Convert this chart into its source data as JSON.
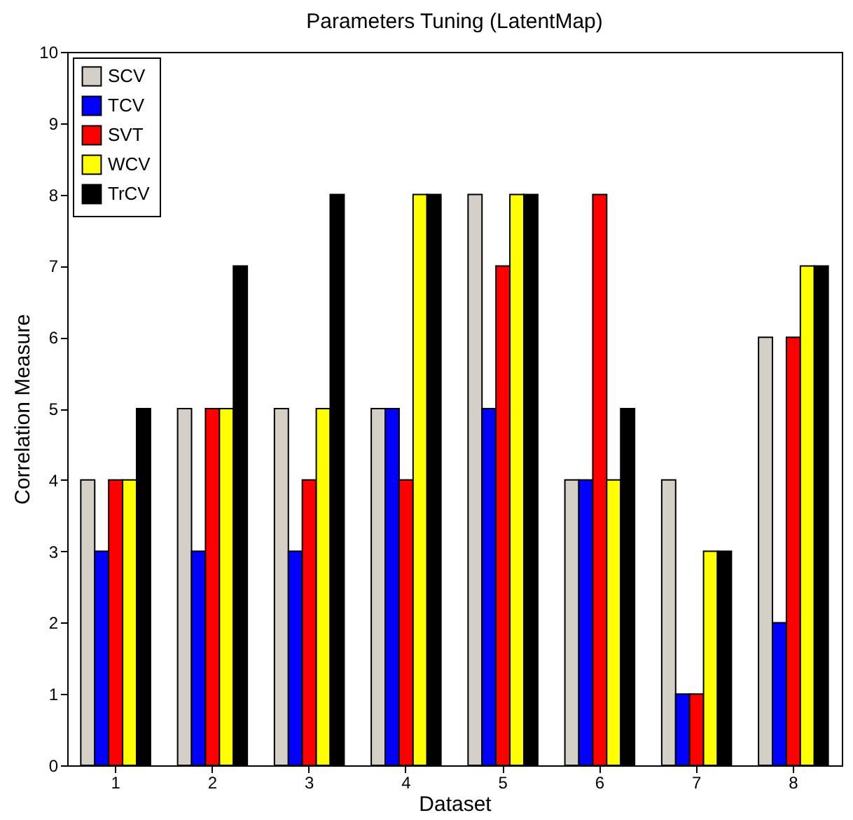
{
  "chart_data": {
    "type": "bar",
    "title": "Parameters Tuning (LatentMap)",
    "xlabel": "Dataset",
    "ylabel": "Correlation Measure",
    "categories": [
      "1",
      "2",
      "3",
      "4",
      "5",
      "6",
      "7",
      "8"
    ],
    "series": [
      {
        "name": "SCV",
        "color": "#d4d0c8",
        "values": [
          4,
          5,
          5,
          5,
          8,
          4,
          4,
          6
        ]
      },
      {
        "name": "TCV",
        "color": "#0000ff",
        "values": [
          3,
          3,
          3,
          5,
          5,
          4,
          1,
          2
        ]
      },
      {
        "name": "SVT",
        "color": "#ff0000",
        "values": [
          4,
          5,
          4,
          4,
          7,
          8,
          1,
          6
        ]
      },
      {
        "name": "WCV",
        "color": "#ffff00",
        "values": [
          4,
          5,
          5,
          8,
          8,
          4,
          3,
          7
        ]
      },
      {
        "name": "TrCV",
        "color": "#000000",
        "values": [
          5,
          7,
          8,
          8,
          8,
          5,
          3,
          7
        ]
      }
    ],
    "ylim": [
      0,
      10
    ],
    "yticks": [
      0,
      1,
      2,
      3,
      4,
      5,
      6,
      7,
      8,
      9,
      10
    ],
    "legend": "top left"
  }
}
